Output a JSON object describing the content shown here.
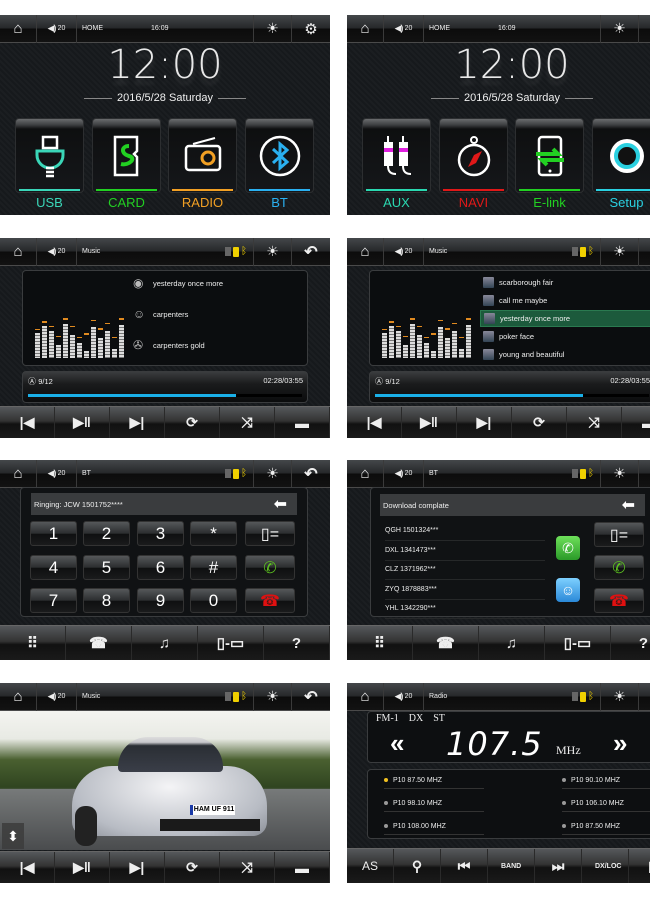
{
  "colors": {
    "accent_blue": "#1ab0e8",
    "highlight_green": "#1c5a3c",
    "indicator_yellow": "#f0d000",
    "call_green": "#5cc020",
    "hangup_red": "#e01010"
  },
  "status_icons": {
    "home": "home-icon",
    "volume": "volume-icon",
    "brightness": "brightness-icon",
    "settings": "gear-icon",
    "back": "back-icon",
    "sd": "sd-card-indicator-icon",
    "usb": "usb-indicator-icon",
    "bt": "bluetooth-indicator-icon"
  },
  "home1": {
    "status": {
      "volume": "20",
      "title": "HOME",
      "time": "16:09"
    },
    "clock": "12:00",
    "date": "2016/5/28",
    "day": "Saturday",
    "tiles": [
      {
        "label": "USB",
        "color": "#3ad6b8",
        "icon": "usb-icon"
      },
      {
        "label": "CARD",
        "color": "#22d022",
        "icon": "sd-card-icon"
      },
      {
        "label": "RADIO",
        "color": "#f2a024",
        "icon": "radio-icon"
      },
      {
        "label": "BT",
        "color": "#2ab0f0",
        "icon": "bluetooth-icon"
      }
    ]
  },
  "home2": {
    "status": {
      "volume": "20",
      "title": "HOME",
      "time": "16:09"
    },
    "clock": "12:00",
    "date": "2016/5/28",
    "day": "Saturday",
    "tiles": [
      {
        "label": "AUX",
        "color": "#2ad8b0",
        "icon": "aux-cable-icon"
      },
      {
        "label": "NAVI",
        "color": "#e01818",
        "icon": "compass-icon"
      },
      {
        "label": "E-link",
        "color": "#22d022",
        "icon": "phone-link-icon"
      },
      {
        "label": "Setup",
        "color": "#2ad0e0",
        "icon": "setup-gear-icon"
      }
    ]
  },
  "music1": {
    "status": {
      "volume": "20",
      "title": "Music"
    },
    "song": "yesterday once more",
    "artist": "carpenters",
    "album": "carpenters gold",
    "track": "9/12",
    "time": "02:28/03:55",
    "progress": 0.76,
    "eq_levels": [
      0.55,
      0.72,
      0.6,
      0.3,
      0.75,
      0.52,
      0.33,
      0.16,
      0.68,
      0.45,
      0.6,
      0.2,
      0.74
    ],
    "eq_peaks": [
      0.65,
      0.82,
      0.72,
      0.5,
      0.88,
      0.72,
      0.47,
      0.55,
      0.85,
      0.66,
      0.78,
      0.47,
      0.88
    ]
  },
  "music2": {
    "status": {
      "volume": "20",
      "title": "Music"
    },
    "playlist": [
      "scarborough fair",
      "call me maybe",
      "yesterday once more",
      "poker face",
      "young and beautiful"
    ],
    "selected": 2,
    "track": "9/12",
    "time": "02:28/03:55",
    "progress": 0.76
  },
  "controls_music": [
    {
      "icon": "previous-icon",
      "g": "|◀"
    },
    {
      "icon": "play-pause-icon",
      "g": "▶‖"
    },
    {
      "icon": "next-icon",
      "g": "▶|"
    },
    {
      "icon": "repeat-icon",
      "g": "⟳"
    },
    {
      "icon": "shuffle-icon",
      "g": "⤨"
    },
    {
      "icon": "folder-icon",
      "g": "▬"
    }
  ],
  "dial": {
    "status": {
      "volume": "20",
      "title": "BT"
    },
    "display": "Ringing: JCW 1501752****",
    "keys": [
      "1",
      "2",
      "3",
      "*",
      "4",
      "5",
      "6",
      "#",
      "7",
      "8",
      "9",
      "0"
    ]
  },
  "contacts": {
    "status": {
      "volume": "20",
      "title": "BT"
    },
    "header": "Download complate",
    "list": [
      "QGH 1501324***",
      "DXL 1341473***",
      "CLZ 1371962***",
      "ZYQ 1878883***",
      "YHL 1342290***"
    ]
  },
  "controls_bt": [
    {
      "icon": "keypad-icon",
      "g": "⠿"
    },
    {
      "icon": "phonebook-icon",
      "g": "☎"
    },
    {
      "icon": "music-note-icon",
      "g": "♫"
    },
    {
      "icon": "phone-transfer-icon",
      "g": "▯‑▭"
    },
    {
      "icon": "help-icon",
      "g": "?"
    }
  ],
  "video": {
    "status": {
      "volume": "20",
      "title": "Music"
    },
    "plate": "HAM UF 911"
  },
  "radio": {
    "status": {
      "volume": "20",
      "title": "Radio"
    },
    "band": "FM-1",
    "dx": "DX",
    "st": "ST",
    "frequency": "107.5",
    "unit": "MHz",
    "seek_back": "«",
    "seek_fwd": "»",
    "presets": [
      {
        "label": "P10",
        "freq": "87.50",
        "unit": "MHZ",
        "active": true
      },
      {
        "label": "P10",
        "freq": "90.10",
        "unit": "MHZ",
        "active": false
      },
      {
        "label": "P10",
        "freq": "98.10",
        "unit": "MHZ",
        "active": false
      },
      {
        "label": "P10",
        "freq": "106.10",
        "unit": "MHZ",
        "active": false
      },
      {
        "label": "P10",
        "freq": "108.00",
        "unit": "MHZ",
        "active": false
      },
      {
        "label": "P10",
        "freq": "87.50",
        "unit": "MHZ",
        "active": false
      }
    ],
    "buttons": [
      "AS",
      "search",
      "prev",
      "BAND",
      "next",
      "DX/LOC",
      "more"
    ]
  }
}
